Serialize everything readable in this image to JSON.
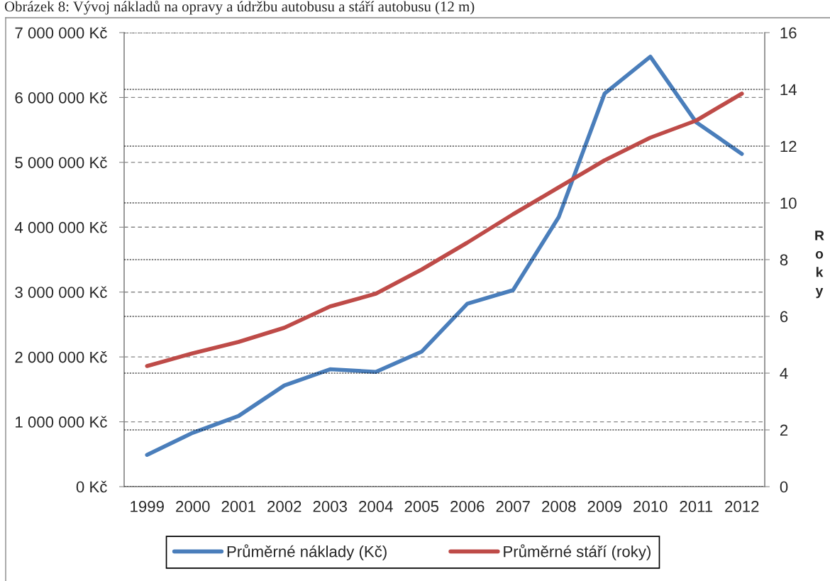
{
  "chart_data": {
    "type": "line",
    "title": "Obrázek 8: Vývoj nákladů na opravy a údržbu autobusu a stáří autobusu (12 m)",
    "y2label": "Roky",
    "categories": [
      "1999",
      "2000",
      "2001",
      "2002",
      "2003",
      "2004",
      "2005",
      "2006",
      "2007",
      "2008",
      "2009",
      "2010",
      "2011",
      "2012"
    ],
    "series": [
      {
        "name": "Průměrné náklady (Kč)",
        "color": "#4a7ebb",
        "values": [
          490000,
          830000,
          1090000,
          1560000,
          1810000,
          1770000,
          2080000,
          2820000,
          3030000,
          4160000,
          6060000,
          6630000,
          5620000,
          5130000
        ]
      },
      {
        "name": "Průměrné stáří (roky)",
        "color": "#be4b48",
        "axis": "y2",
        "values": [
          4.25,
          4.7,
          5.1,
          5.6,
          6.35,
          6.8,
          7.65,
          8.6,
          9.6,
          10.55,
          11.5,
          12.3,
          12.9,
          13.85
        ]
      }
    ],
    "ylim": [
      0,
      7000000
    ],
    "yticks": [
      {
        "value": 0,
        "label": "0 Kč"
      },
      {
        "value": 1000000,
        "label": "1 000 000 Kč"
      },
      {
        "value": 2000000,
        "label": "2 000 000 Kč"
      },
      {
        "value": 3000000,
        "label": "3 000 000 Kč"
      },
      {
        "value": 4000000,
        "label": "4 000 000 Kč"
      },
      {
        "value": 5000000,
        "label": "5 000 000 Kč"
      },
      {
        "value": 6000000,
        "label": "6 000 000 Kč"
      },
      {
        "value": 7000000,
        "label": "7 000 000 Kč"
      }
    ],
    "y2lim": [
      0,
      16
    ],
    "y2ticks": [
      0,
      2,
      4,
      6,
      8,
      10,
      12,
      14,
      16
    ],
    "grid": "y",
    "legend": "bottom",
    "line_style": "solid"
  }
}
